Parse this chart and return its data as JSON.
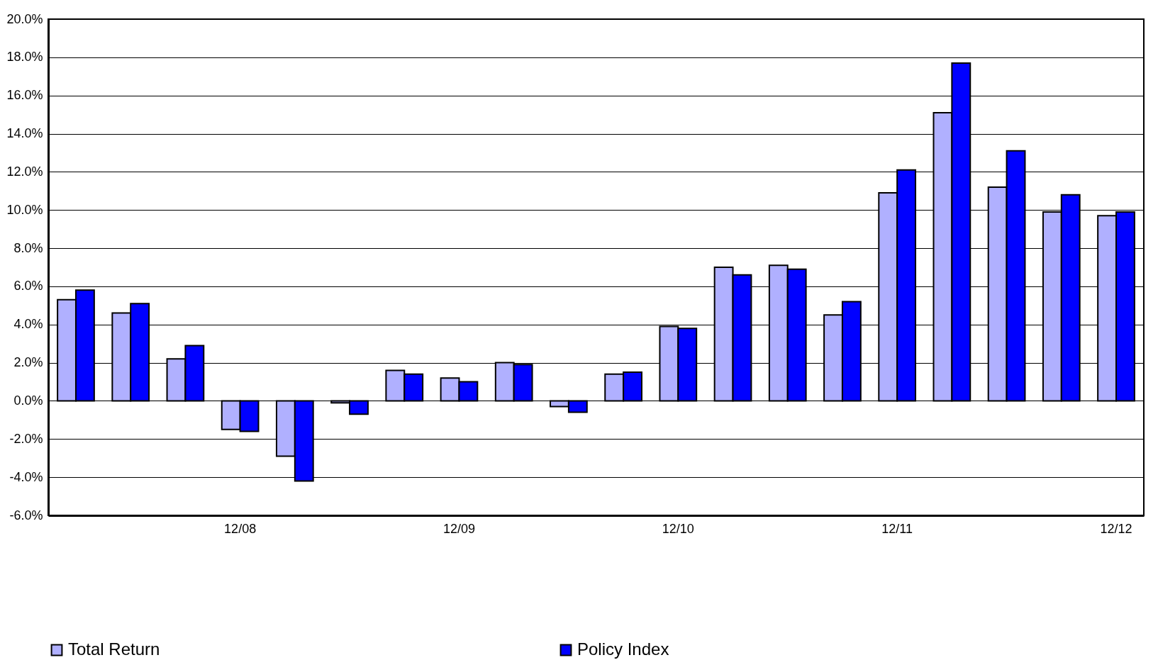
{
  "chart_data": {
    "type": "bar",
    "categories": [
      null,
      null,
      null,
      "12/08",
      null,
      null,
      null,
      "12/09",
      null,
      null,
      null,
      "12/10",
      null,
      null,
      null,
      "12/11",
      null,
      null,
      null,
      "12/12"
    ],
    "series": [
      {
        "name": "Total Return",
        "color": "#b0b0ff",
        "values": [
          5.3,
          4.6,
          2.2,
          -1.5,
          -2.9,
          -0.1,
          1.6,
          1.2,
          2.0,
          -0.3,
          1.4,
          3.9,
          7.0,
          7.1,
          4.5,
          10.9,
          15.1,
          11.2,
          9.9,
          9.7
        ]
      },
      {
        "name": "Policy Index",
        "color": "#0000ff",
        "values": [
          5.8,
          5.1,
          2.9,
          -1.6,
          -4.2,
          -0.7,
          1.4,
          1.0,
          1.9,
          -0.6,
          1.5,
          3.8,
          6.6,
          6.9,
          5.2,
          12.1,
          17.7,
          13.1,
          10.8,
          9.9
        ]
      }
    ],
    "ylim": [
      -6,
      20
    ],
    "yticks": [
      {
        "value": -6,
        "label": "-6.0%"
      },
      {
        "value": -4,
        "label": "-4.0%"
      },
      {
        "value": -2,
        "label": "-2.0%"
      },
      {
        "value": 0,
        "label": "0.0%"
      },
      {
        "value": 2,
        "label": "2.0%"
      },
      {
        "value": 4,
        "label": "4.0%"
      },
      {
        "value": 6,
        "label": "6.0%"
      },
      {
        "value": 8,
        "label": "8.0%"
      },
      {
        "value": 10,
        "label": "10.0%"
      },
      {
        "value": 12,
        "label": "12.0%"
      },
      {
        "value": 14,
        "label": "14.0%"
      },
      {
        "value": 16,
        "label": "16.0%"
      },
      {
        "value": 18,
        "label": "18.0%"
      },
      {
        "value": 20,
        "label": "20.0%"
      }
    ],
    "grid": "y",
    "legend": "bottom left"
  }
}
